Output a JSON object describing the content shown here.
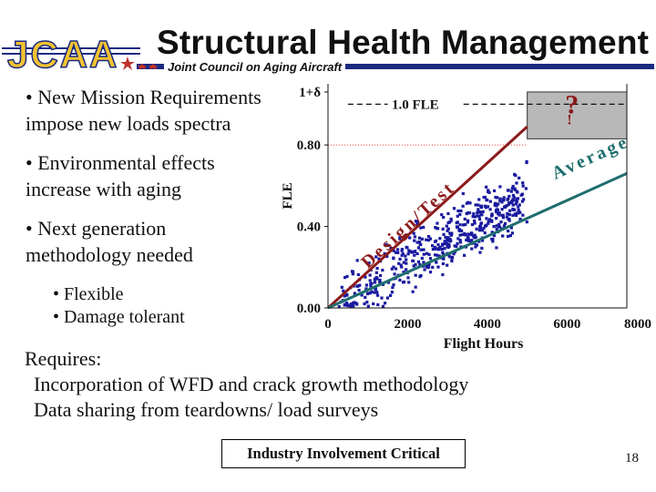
{
  "header": {
    "logo_text": "JCAA",
    "title": "Structural Health Management",
    "subtitle": "Joint Council on Aging Aircraft"
  },
  "bullets": {
    "item1_line1": "• New Mission Requirements",
    "item1_line2": "impose new loads spectra",
    "item2_line1": "• Environmental effects",
    "item2_line2": "increase with aging",
    "item3_line1": "• Next generation",
    "item3_line2": "methodology needed",
    "sub1": "• Flexible",
    "sub2": "• Damage tolerant"
  },
  "chart_data": {
    "type": "scatter",
    "xlabel": "Flight Hours",
    "ylabel": "FLE",
    "x_ticks": [
      "0",
      "2000",
      "4000",
      "6000",
      "8000"
    ],
    "y_ticks": [
      "0.00",
      "0.40",
      "0.80",
      "1+δ"
    ],
    "xlim": [
      0,
      7500
    ],
    "ylim": [
      0,
      1.1
    ],
    "reference_line_label": "1.0 FLE",
    "reference_line_value": 1.0,
    "unknown_region_label": "?",
    "unknown_region_mark": "!",
    "series": [
      {
        "name": "Design/Test",
        "x": [
          0,
          5000
        ],
        "y": [
          0,
          0.89
        ]
      },
      {
        "name": "Average",
        "x": [
          0,
          7500
        ],
        "y": [
          0,
          0.66
        ]
      }
    ],
    "scatter_range_x": [
      200,
      5000
    ],
    "scatter_point_count": 520,
    "colors": {
      "points": "#1a1aa0",
      "design_line": "#8b1a1a",
      "average_line": "#1f6e6e",
      "unknown_region": "#b8b8b8",
      "grid": "#ff4040"
    }
  },
  "requires": {
    "heading": "Requires:",
    "line1": "Incorporation of WFD and crack growth methodology",
    "line2": "Data sharing from teardowns/ load surveys"
  },
  "callout": "Industry Involvement Critical",
  "page_number": "18"
}
